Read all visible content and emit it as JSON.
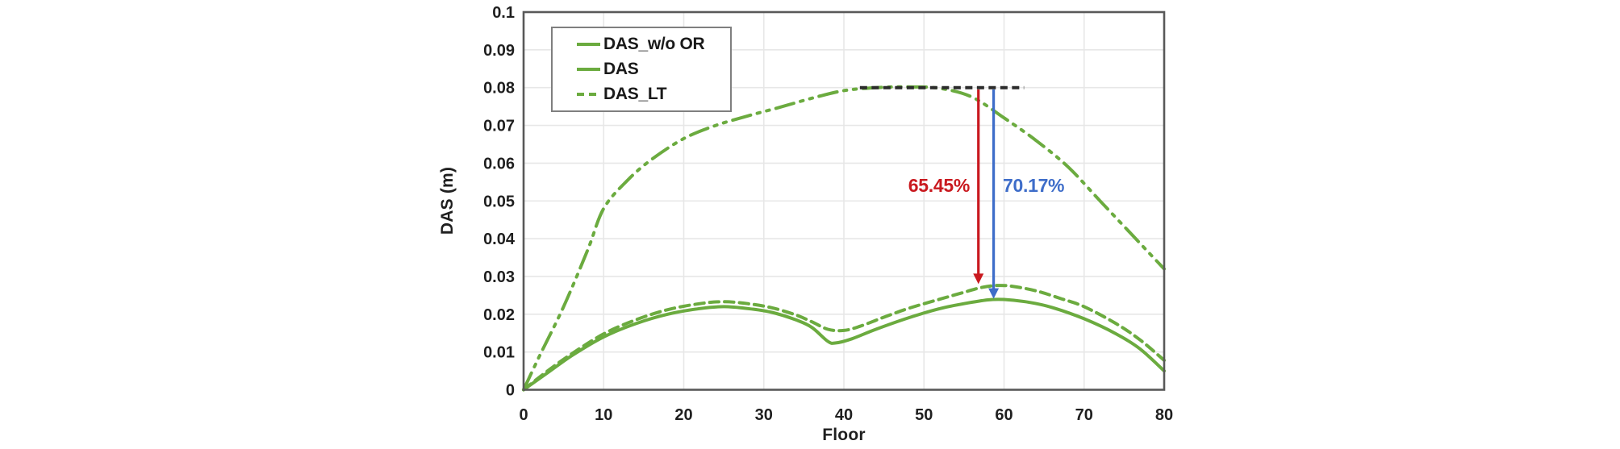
{
  "figure": {
    "background": "#ffffff"
  },
  "colors": {
    "series_green": "#6bab3f",
    "grid": "#e7e7e7",
    "frame": "#595959",
    "tick_text": "#1f1f1f",
    "reference_line": "#2b2b2b",
    "annotation_red": "#c9191f",
    "annotation_blue": "#3e6dc9",
    "legend_border": "#7f7f7f"
  },
  "chart_data": {
    "type": "line",
    "title": "",
    "xlabel": "Floor",
    "ylabel": "DAS (m)",
    "xlim": [
      0,
      80
    ],
    "ylim": [
      0,
      0.1
    ],
    "x_ticks": [
      0,
      10,
      20,
      30,
      40,
      50,
      60,
      70,
      80
    ],
    "y_tick_values": [
      0,
      0.01,
      0.02,
      0.03,
      0.04,
      0.05,
      0.06,
      0.07,
      0.08,
      0.09,
      0.1
    ],
    "y_tick_labels": [
      "0",
      "0.01",
      "0.02",
      "0.03",
      "0.04",
      "0.05",
      "0.06",
      "0.07",
      "0.08",
      "0.09",
      "0.1"
    ],
    "grid": true,
    "legend_position": "top-left-inside",
    "series": [
      {
        "name": "DAS_w/o OR",
        "line_style": "long-dash-dot-dot",
        "color": "#6bab3f",
        "points": [
          [
            0,
            0
          ],
          [
            2,
            0.009
          ],
          [
            5,
            0.022
          ],
          [
            8,
            0.037
          ],
          [
            10,
            0.048
          ],
          [
            13,
            0.0555
          ],
          [
            16,
            0.061
          ],
          [
            20,
            0.0665
          ],
          [
            24,
            0.07
          ],
          [
            28,
            0.0725
          ],
          [
            32,
            0.0748
          ],
          [
            36,
            0.0772
          ],
          [
            40,
            0.0792
          ],
          [
            44,
            0.08
          ],
          [
            48,
            0.0802
          ],
          [
            52,
            0.0798
          ],
          [
            56,
            0.0775
          ],
          [
            60,
            0.072
          ],
          [
            64,
            0.066
          ],
          [
            68,
            0.059
          ],
          [
            72,
            0.05
          ],
          [
            76,
            0.041
          ],
          [
            80,
            0.032
          ]
        ]
      },
      {
        "name": "DAS",
        "line_style": "solid",
        "color": "#6bab3f",
        "points": [
          [
            0,
            0
          ],
          [
            3,
            0.0045
          ],
          [
            6,
            0.009
          ],
          [
            10,
            0.014
          ],
          [
            14,
            0.0175
          ],
          [
            18,
            0.02
          ],
          [
            22,
            0.0215
          ],
          [
            25,
            0.022
          ],
          [
            28,
            0.0215
          ],
          [
            31,
            0.0205
          ],
          [
            34,
            0.0185
          ],
          [
            36,
            0.0165
          ],
          [
            38,
            0.0128
          ],
          [
            39,
            0.0124
          ],
          [
            41,
            0.0135
          ],
          [
            44,
            0.016
          ],
          [
            48,
            0.019
          ],
          [
            52,
            0.0215
          ],
          [
            55,
            0.0228
          ],
          [
            58,
            0.0238
          ],
          [
            60,
            0.0239
          ],
          [
            63,
            0.0232
          ],
          [
            66,
            0.0218
          ],
          [
            70,
            0.0188
          ],
          [
            74,
            0.0148
          ],
          [
            77,
            0.0108
          ],
          [
            80,
            0.005
          ]
        ]
      },
      {
        "name": "DAS_LT",
        "line_style": "dashed",
        "color": "#6bab3f",
        "points": [
          [
            0,
            0
          ],
          [
            3,
            0.005
          ],
          [
            6,
            0.0095
          ],
          [
            10,
            0.0148
          ],
          [
            14,
            0.0185
          ],
          [
            18,
            0.0212
          ],
          [
            22,
            0.0228
          ],
          [
            25,
            0.0233
          ],
          [
            28,
            0.0228
          ],
          [
            31,
            0.0217
          ],
          [
            34,
            0.0198
          ],
          [
            36,
            0.018
          ],
          [
            38,
            0.016
          ],
          [
            40,
            0.0157
          ],
          [
            42,
            0.0168
          ],
          [
            45,
            0.0192
          ],
          [
            48,
            0.0215
          ],
          [
            52,
            0.024
          ],
          [
            55,
            0.0258
          ],
          [
            57,
            0.027
          ],
          [
            59,
            0.0276
          ],
          [
            61,
            0.0274
          ],
          [
            64,
            0.0262
          ],
          [
            67,
            0.0242
          ],
          [
            70,
            0.022
          ],
          [
            74,
            0.0175
          ],
          [
            77,
            0.0132
          ],
          [
            80,
            0.0078
          ]
        ]
      }
    ],
    "reference_line": {
      "y": 0.08,
      "x_from": 42,
      "x_to": 62.5,
      "style": "dashed",
      "color": "#2b2b2b"
    },
    "annotations": [
      {
        "label": "65.45%",
        "color": "#c9191f",
        "x": 56.8,
        "y_from": 0.0795,
        "y_to": 0.028,
        "label_side": "left"
      },
      {
        "label": "70.17%",
        "color": "#3e6dc9",
        "x": 58.7,
        "y_from": 0.0795,
        "y_to": 0.0241,
        "label_side": "right"
      }
    ]
  }
}
